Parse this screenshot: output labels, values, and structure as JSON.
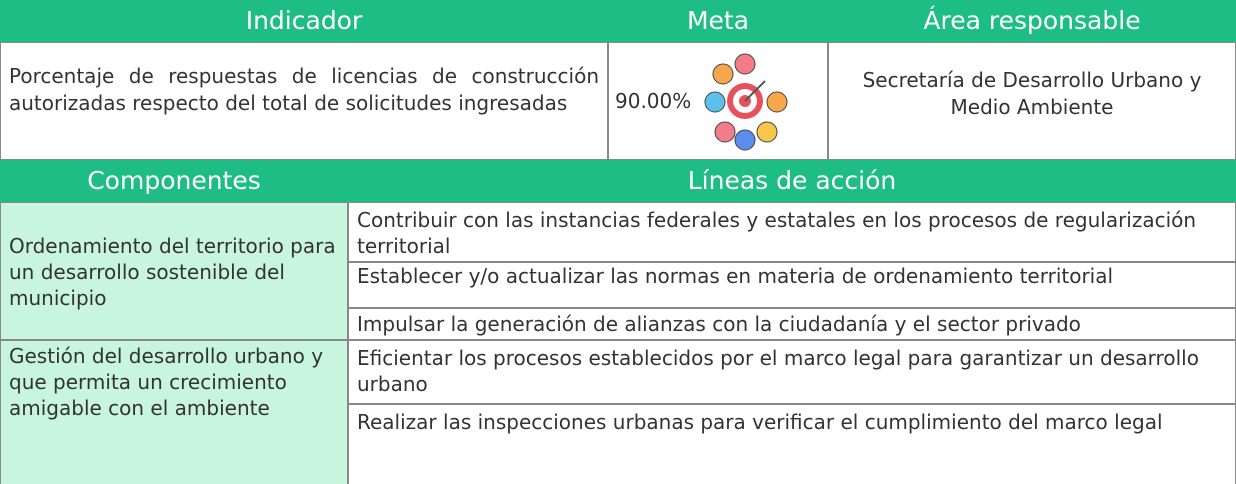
{
  "header": {
    "indicator": "Indicador",
    "goal": "Meta",
    "area": "Área responsable"
  },
  "indicator": {
    "text": "Porcentaje de respuestas de licencias de construcción autorizadas respecto del total de solicitudes ingresadas",
    "goal": "90.00%",
    "area": "Secretaría de Desarrollo Urbano y Medio Ambiente"
  },
  "subheader": {
    "components": "Componentes",
    "actions": "Líneas de acción"
  },
  "components": [
    {
      "name": "Ordenamiento del territorio para un desarrollo sostenible del municipio",
      "actions": [
        "Contribuir con las instancias federales y estatales en los procesos de regularización territorial",
        "Establecer y/o actualizar las normas en materia de ordenamiento territorial",
        "Impulsar la generación de alianzas con la ciudadanía y el sector privado"
      ]
    },
    {
      "name": "Gestión del desarrollo urbano y que permita un crecimiento amigable con el ambiente",
      "actions": [
        "Eficientar los procesos establecidos por el marco legal para garantizar un desarrollo urbano",
        "Realizar las inspecciones urbanas para verificar el cumplimiento del marco legal"
      ]
    }
  ]
}
